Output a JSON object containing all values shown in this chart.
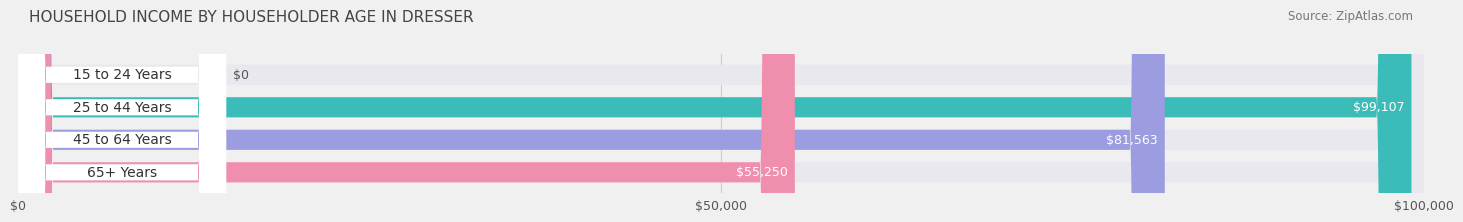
{
  "title": "HOUSEHOLD INCOME BY HOUSEHOLDER AGE IN DRESSER",
  "source": "Source: ZipAtlas.com",
  "categories": [
    "15 to 24 Years",
    "25 to 44 Years",
    "45 to 64 Years",
    "65+ Years"
  ],
  "values": [
    0,
    99107,
    81563,
    55250
  ],
  "bar_colors": [
    "#c9a8d4",
    "#3bbcb8",
    "#9b9de0",
    "#f08fad"
  ],
  "bg_color": "#f0f0f0",
  "bar_bg_color": "#e8e8ee",
  "max_value": 100000,
  "tick_values": [
    0,
    50000,
    100000
  ],
  "tick_labels": [
    "$0",
    "$50,000",
    "$100,000"
  ],
  "value_labels": [
    "$0",
    "$99,107",
    "$81,563",
    "$55,250"
  ],
  "title_fontsize": 11,
  "source_fontsize": 8.5,
  "label_fontsize": 10,
  "value_fontsize": 9,
  "tick_fontsize": 9
}
